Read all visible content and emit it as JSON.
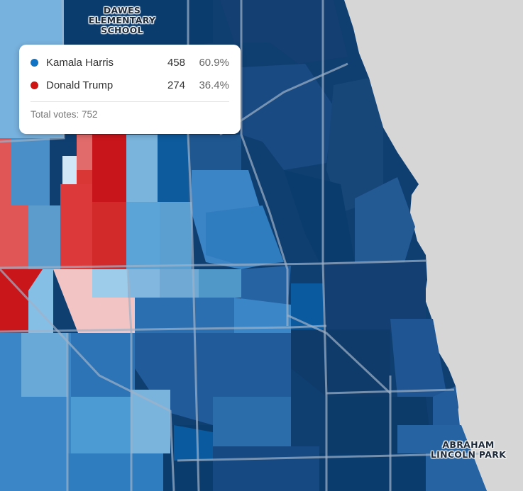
{
  "map": {
    "places": [
      {
        "name": "DAWES ELEMENTARY SCHOOL",
        "line1": "DAWES ELEMENTARY",
        "line2": "SCHOOL"
      },
      {
        "name": "ABRAHAM LINCOLN PARK",
        "line1": "ABRAHAM",
        "line2": "LINCOLN PARK"
      }
    ],
    "colors": {
      "water": "#d6d6d6",
      "dem_darkest": "#0b3c6e",
      "dem_dark": "#1c4f86",
      "dem_mid": "#2f7cbf",
      "dem_light": "#76b3de",
      "rep_strong": "#c8151b",
      "rep_mid": "#e24a4a",
      "rep_light": "#f2c4c4",
      "roads": "#9fb2c7"
    }
  },
  "tooltip": {
    "candidates": [
      {
        "name": "Kamala Harris",
        "votes": "458",
        "pct": "60.9%",
        "color": "#1173c4"
      },
      {
        "name": "Donald Trump",
        "votes": "274",
        "pct": "36.4%",
        "color": "#cf1414"
      }
    ],
    "total_label": "Total votes: 752"
  }
}
